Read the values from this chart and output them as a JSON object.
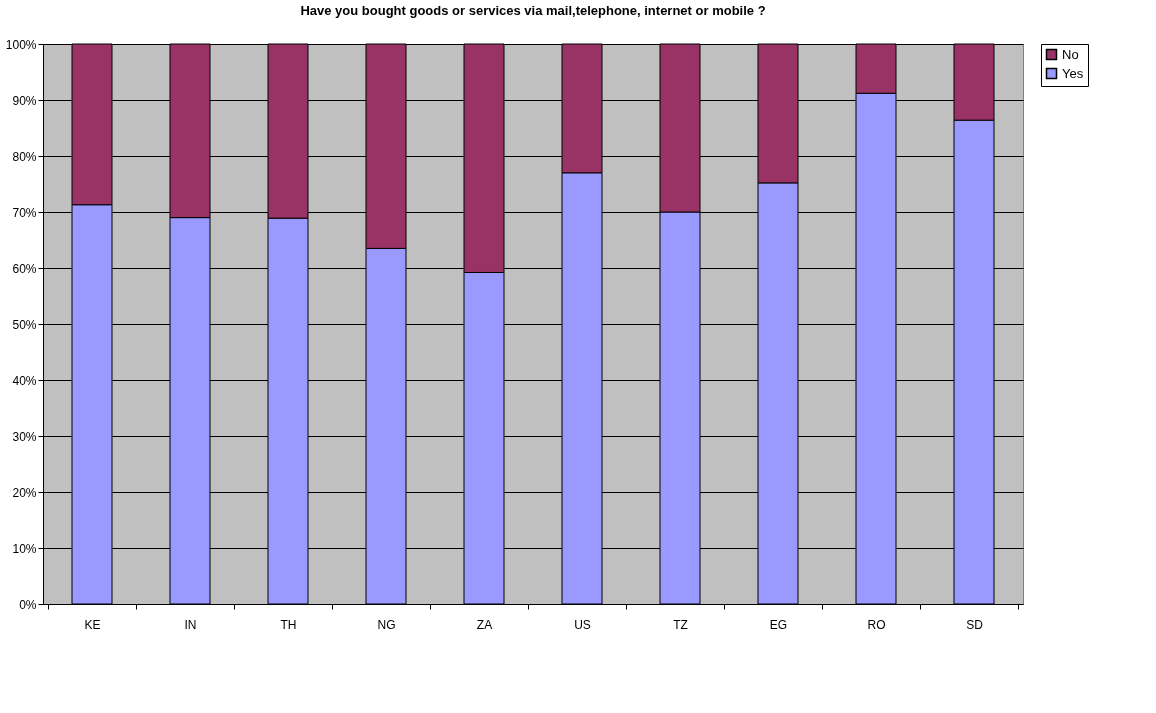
{
  "chart_data": {
    "type": "bar",
    "title": "Have you bought goods or services via mail,telephone, internet or mobile ?",
    "categories": [
      "KE",
      "IN",
      "TH",
      "NG",
      "ZA",
      "US",
      "TZ",
      "EG",
      "RO",
      "SD"
    ],
    "stacked": true,
    "series": [
      {
        "name": "Yes",
        "color": "#9999ff",
        "values": [
          71.3,
          69,
          68.9,
          63.5,
          59.2,
          77,
          70,
          75.2,
          91.2,
          86.4
        ]
      },
      {
        "name": "No",
        "color": "#993366",
        "values": [
          28.7,
          31,
          31.1,
          36.5,
          40.8,
          23,
          30,
          24.8,
          8.8,
          13.6
        ]
      }
    ],
    "ylim": [
      0,
      100
    ],
    "yticks": [
      {
        "value": 0,
        "label": "0%"
      },
      {
        "value": 10,
        "label": "10%"
      },
      {
        "value": 20,
        "label": "20%"
      },
      {
        "value": 30,
        "label": "30%"
      },
      {
        "value": 40,
        "label": "40%"
      },
      {
        "value": 50,
        "label": "50%"
      },
      {
        "value": 60,
        "label": "60%"
      },
      {
        "value": 70,
        "label": "70%"
      },
      {
        "value": 80,
        "label": "80%"
      },
      {
        "value": 90,
        "label": "90%"
      },
      {
        "value": 100,
        "label": "100%"
      }
    ],
    "grid": "y",
    "legend": "right"
  }
}
